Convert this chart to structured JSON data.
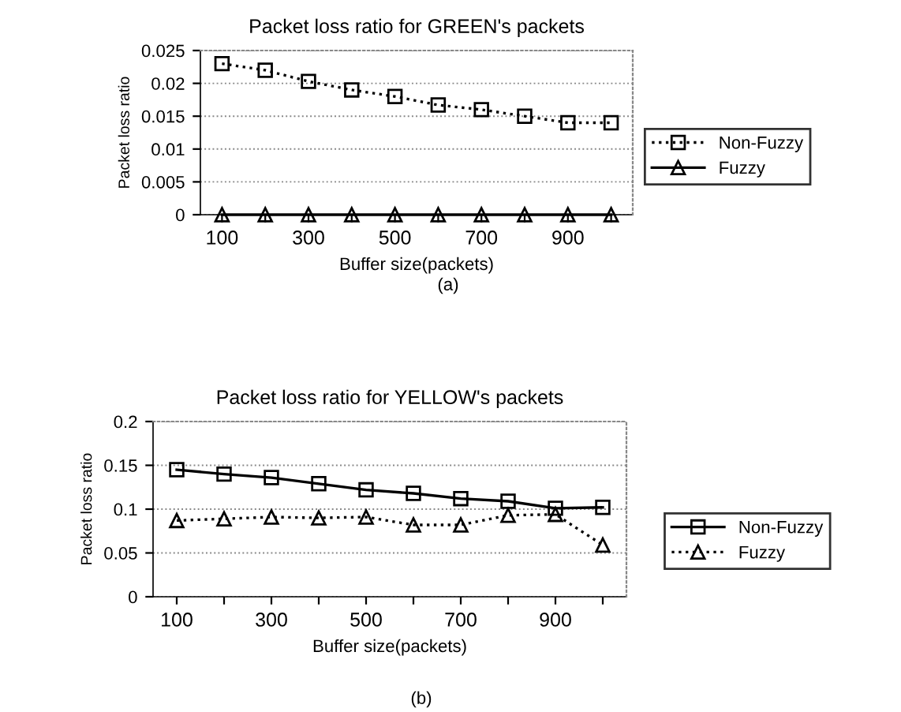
{
  "chart_data": [
    {
      "type": "line",
      "title": "Packet loss ratio for GREEN's packets",
      "xlabel": "Buffer size(packets)",
      "ylabel": "Packet loss ratio",
      "categories": [
        "100",
        null,
        "300",
        null,
        "500",
        null,
        "700",
        null,
        "900",
        null
      ],
      "ylim": [
        0,
        0.025
      ],
      "yticks": [
        0,
        0.005,
        0.01,
        0.015,
        0.02,
        0.025
      ],
      "grid": "y",
      "legend": "right",
      "annotations": [
        "(a)"
      ],
      "series": [
        {
          "name": "Non-Fuzzy",
          "color": "#000000",
          "marker": "square",
          "line_style": "dotted",
          "values": [
            0.023,
            0.022,
            0.0203,
            0.019,
            0.018,
            0.0167,
            0.016,
            0.015,
            0.014,
            0.014
          ]
        },
        {
          "name": "Fuzzy",
          "color": "#000000",
          "marker": "triangle",
          "line_style": "solid",
          "values": [
            0,
            0,
            0,
            0,
            0,
            0,
            0,
            0,
            0,
            0
          ]
        }
      ]
    },
    {
      "type": "line",
      "title": "Packet loss ratio for YELLOW's packets",
      "xlabel": "Buffer size(packets)",
      "ylabel": "Packet loss ratio",
      "categories": [
        "100",
        null,
        "300",
        null,
        "500",
        null,
        "700",
        null,
        "900",
        null
      ],
      "ylim": [
        0,
        0.2
      ],
      "yticks": [
        0,
        0.05,
        0.1,
        0.15,
        0.2
      ],
      "grid": "y",
      "legend": "right",
      "annotations": [
        "(b)"
      ],
      "series": [
        {
          "name": "Non-Fuzzy",
          "color": "#000000",
          "marker": "square",
          "line_style": "solid",
          "values": [
            0.145,
            0.14,
            0.136,
            0.129,
            0.122,
            0.118,
            0.112,
            0.109,
            0.101,
            0.102
          ]
        },
        {
          "name": "Fuzzy",
          "color": "#000000",
          "marker": "triangle",
          "line_style": "dotted",
          "values": [
            0.087,
            0.089,
            0.091,
            0.09,
            0.091,
            0.082,
            0.082,
            0.093,
            0.094,
            0.059
          ]
        }
      ]
    }
  ]
}
